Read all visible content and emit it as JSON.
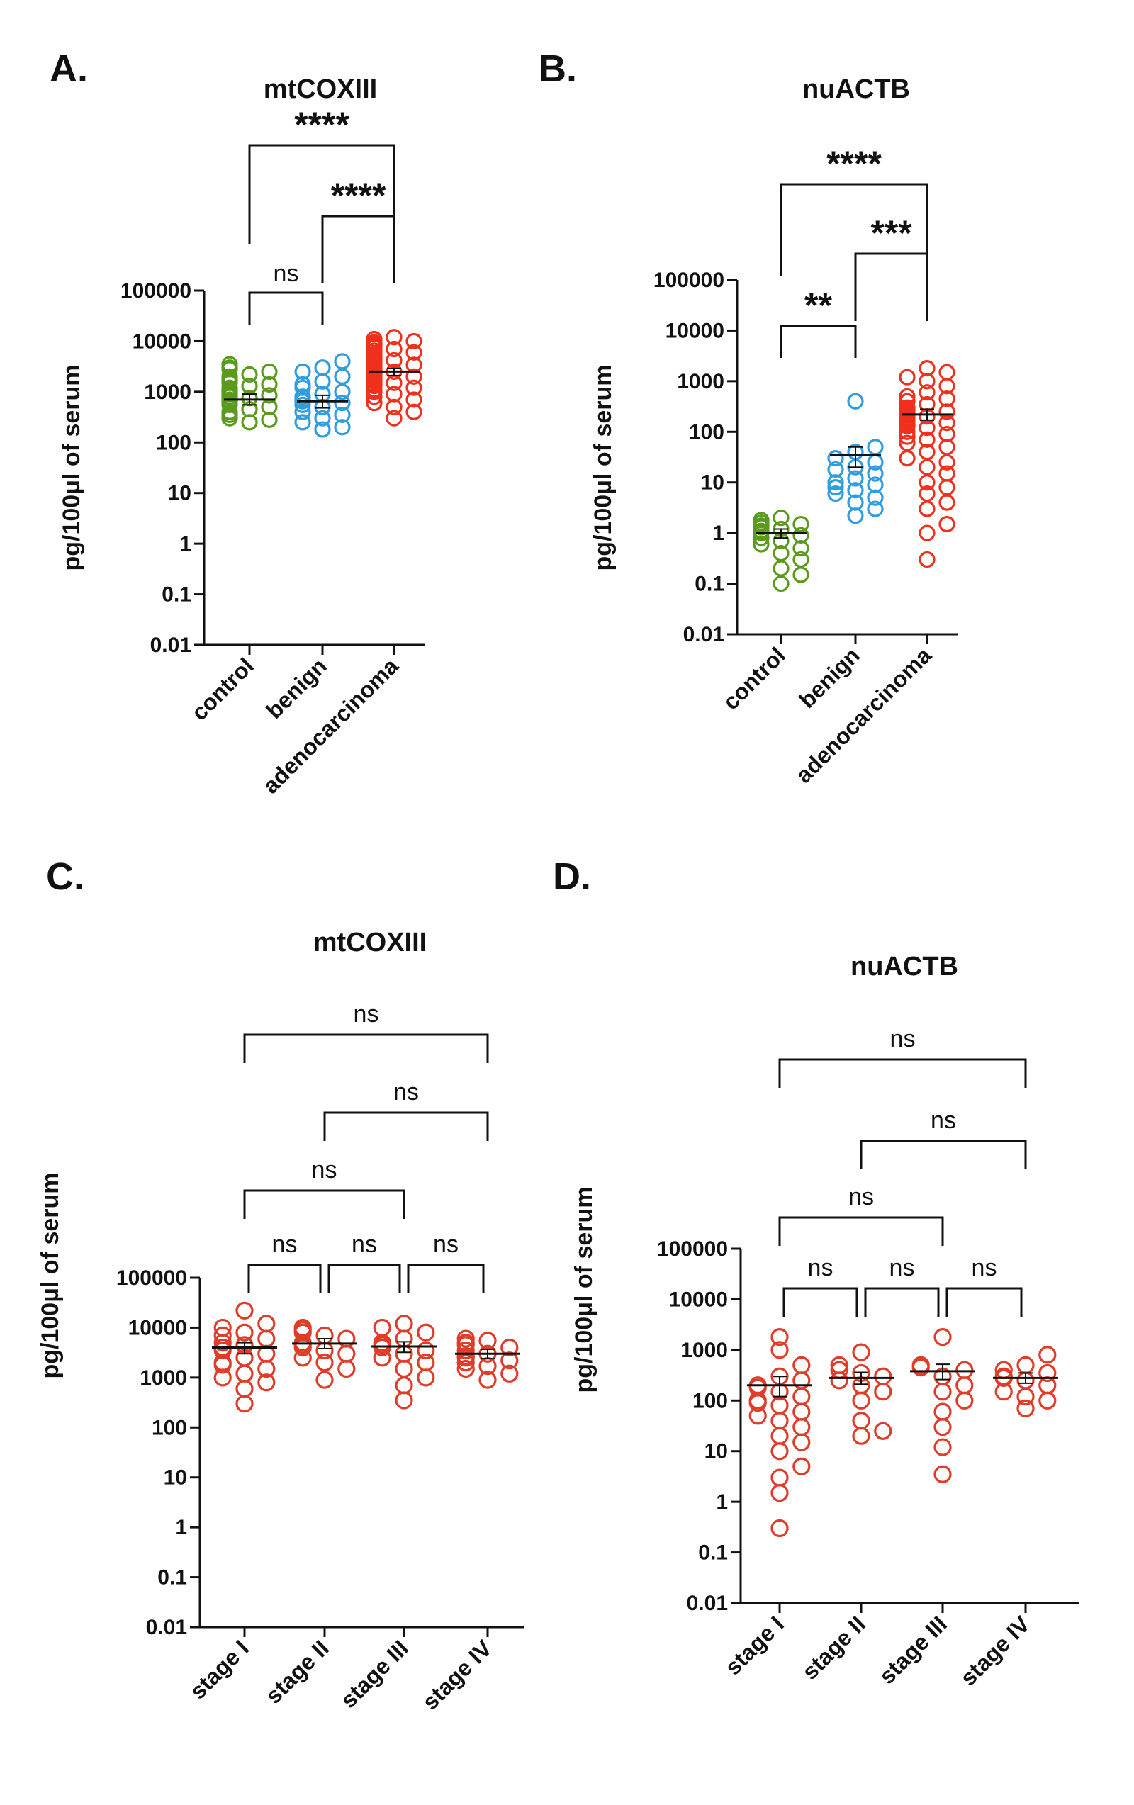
{
  "panels": [
    {
      "letter": "A."
    },
    {
      "letter": "B."
    },
    {
      "letter": "C."
    },
    {
      "letter": "D."
    }
  ],
  "chart_data": [
    {
      "type": "scatter",
      "title": "mtCOXIII",
      "ylabel": "pg/100μl of serum",
      "xlabel": "",
      "yscale": "log",
      "ylim": [
        0.01,
        100000
      ],
      "yticks": [
        "100000",
        "10000",
        "1000",
        "100",
        "10",
        "1",
        "0.1",
        "0.01"
      ],
      "categories": [
        "control",
        "benign",
        "adenocarcinoma"
      ],
      "colors": [
        "#5a9a1c",
        "#2f9de0",
        "#f0301c"
      ],
      "series": [
        {
          "name": "control",
          "mean": 700,
          "sem_low": 550,
          "sem_high": 900,
          "values": [
            3500,
            3000,
            2800,
            2500,
            2200,
            2000,
            1800,
            1600,
            1500,
            1400,
            1300,
            1200,
            1100,
            1000,
            950,
            900,
            850,
            800,
            750,
            700,
            650,
            600,
            550,
            500,
            450,
            400,
            350,
            300,
            280,
            250
          ]
        },
        {
          "name": "benign",
          "mean": 650,
          "sem_low": 480,
          "sem_high": 850,
          "values": [
            4000,
            3000,
            2500,
            2000,
            1600,
            1400,
            1200,
            1000,
            900,
            800,
            700,
            650,
            600,
            550,
            500,
            400,
            350,
            300,
            250,
            200,
            180
          ]
        },
        {
          "name": "adenocarcinoma",
          "mean": 2500,
          "sem_low": 2100,
          "sem_high": 2900,
          "values": [
            12000,
            11000,
            10000,
            9500,
            9000,
            8500,
            8000,
            7500,
            7000,
            6500,
            6000,
            5500,
            5000,
            4800,
            4600,
            4400,
            4200,
            4000,
            3800,
            3600,
            3400,
            3200,
            3000,
            2900,
            2800,
            2700,
            2600,
            2500,
            2400,
            2300,
            2200,
            2100,
            2000,
            1900,
            1800,
            1700,
            1600,
            1500,
            1400,
            1300,
            1200,
            1100,
            1000,
            900,
            800,
            700,
            600,
            500,
            400,
            300
          ]
        }
      ],
      "comparisons": [
        {
          "from": 0,
          "to": 2,
          "label": "****"
        },
        {
          "from": 1,
          "to": 2,
          "label": "****"
        },
        {
          "from": 0,
          "to": 1,
          "label": "ns"
        }
      ]
    },
    {
      "type": "scatter",
      "title": "nuACTB",
      "ylabel": "pg/100μl of serum",
      "xlabel": "",
      "yscale": "log",
      "ylim": [
        0.01,
        100000
      ],
      "yticks": [
        "100000",
        "10000",
        "1000",
        "100",
        "10",
        "1",
        "0.1",
        "0.01"
      ],
      "categories": [
        "control",
        "benign",
        "adenocarcinoma"
      ],
      "colors": [
        "#5a9a1c",
        "#2f9de0",
        "#f0301c"
      ],
      "series": [
        {
          "name": "control",
          "mean": 1.0,
          "sem_low": 0.8,
          "sem_high": 1.2,
          "values": [
            2.0,
            1.8,
            1.6,
            1.5,
            1.4,
            1.3,
            1.2,
            1.1,
            1.0,
            0.9,
            0.8,
            0.7,
            0.6,
            0.5,
            0.4,
            0.3,
            0.2,
            0.15,
            0.1
          ]
        },
        {
          "name": "benign",
          "mean": 35,
          "sem_low": 20,
          "sem_high": 50,
          "values": [
            400,
            50,
            40,
            30,
            25,
            20,
            18,
            15,
            12,
            10,
            9,
            8,
            7,
            6,
            5,
            4,
            3,
            2.2
          ]
        },
        {
          "name": "adenocarcinoma",
          "mean": 220,
          "sem_low": 170,
          "sem_high": 280,
          "values": [
            1800,
            1500,
            1200,
            1000,
            800,
            600,
            500,
            450,
            400,
            350,
            300,
            280,
            260,
            250,
            240,
            230,
            220,
            210,
            200,
            190,
            180,
            170,
            160,
            150,
            140,
            130,
            120,
            100,
            90,
            80,
            70,
            60,
            50,
            40,
            30,
            25,
            20,
            15,
            10,
            8,
            6,
            4,
            3,
            1.5,
            1.0,
            0.3
          ]
        }
      ],
      "comparisons": [
        {
          "from": 0,
          "to": 2,
          "label": "****"
        },
        {
          "from": 1,
          "to": 2,
          "label": "***"
        },
        {
          "from": 0,
          "to": 1,
          "label": "**"
        }
      ]
    },
    {
      "type": "scatter",
      "title": "mtCOXIII",
      "ylabel": "pg/100μl of serum",
      "xlabel": "",
      "yscale": "log",
      "ylim": [
        0.01,
        100000
      ],
      "yticks": [
        "100000",
        "10000",
        "1000",
        "100",
        "10",
        "1",
        "0.1",
        "0.01"
      ],
      "categories": [
        "stage I",
        "stage II",
        "stage III",
        "stage IV"
      ],
      "colors": [
        "#e03c28",
        "#e03c28",
        "#e03c28",
        "#e03c28"
      ],
      "series": [
        {
          "name": "stage I",
          "mean": 4000,
          "sem_low": 3000,
          "sem_high": 5000,
          "values": [
            22000,
            12000,
            10000,
            8000,
            7000,
            6000,
            5000,
            4500,
            4000,
            3500,
            3000,
            2500,
            2000,
            1800,
            1500,
            1200,
            1000,
            800,
            600,
            300
          ]
        },
        {
          "name": "stage II",
          "mean": 4800,
          "sem_low": 3800,
          "sem_high": 6000,
          "values": [
            10000,
            9000,
            8000,
            7000,
            6000,
            5000,
            4500,
            4000,
            3500,
            3000,
            2500,
            2000,
            1500,
            900
          ]
        },
        {
          "name": "stage III",
          "mean": 4200,
          "sem_low": 3200,
          "sem_high": 5200,
          "values": [
            12000,
            10000,
            8000,
            6000,
            5000,
            4500,
            4000,
            3500,
            3000,
            2500,
            2000,
            1500,
            1000,
            700,
            350
          ]
        },
        {
          "name": "stage IV",
          "mean": 3000,
          "sem_low": 2400,
          "sem_high": 3700,
          "values": [
            6000,
            5500,
            5000,
            4500,
            4000,
            3500,
            3000,
            2700,
            2500,
            2200,
            2000,
            1700,
            1500,
            1200,
            900
          ]
        }
      ],
      "comparisons": [
        {
          "from": 0,
          "to": 3,
          "label": "ns"
        },
        {
          "from": 1,
          "to": 3,
          "label": "ns"
        },
        {
          "from": 0,
          "to": 2,
          "label": "ns"
        },
        {
          "from": 0,
          "to": 1,
          "label": "ns"
        },
        {
          "from": 1,
          "to": 2,
          "label": "ns"
        },
        {
          "from": 2,
          "to": 3,
          "label": "ns"
        }
      ]
    },
    {
      "type": "scatter",
      "title": "nuACTB",
      "ylabel": "pg/100μl of serum",
      "xlabel": "",
      "yscale": "log",
      "ylim": [
        0.01,
        100000
      ],
      "yticks": [
        "100000",
        "10000",
        "1000",
        "100",
        "10",
        "1",
        "0.1",
        "0.01"
      ],
      "categories": [
        "stage I",
        "stage II",
        "stage III",
        "stage IV"
      ],
      "colors": [
        "#e03c28",
        "#e03c28",
        "#e03c28",
        "#e03c28"
      ],
      "series": [
        {
          "name": "stage I",
          "mean": 200,
          "sem_low": 120,
          "sem_high": 300,
          "values": [
            1800,
            1000,
            500,
            300,
            250,
            200,
            180,
            150,
            120,
            100,
            90,
            80,
            60,
            50,
            40,
            30,
            20,
            15,
            10,
            5,
            3,
            1.5,
            0.3
          ]
        },
        {
          "name": "stage II",
          "mean": 280,
          "sem_low": 210,
          "sem_high": 360,
          "values": [
            900,
            500,
            400,
            350,
            300,
            250,
            200,
            150,
            100,
            40,
            25,
            20
          ]
        },
        {
          "name": "stage III",
          "mean": 380,
          "sem_low": 260,
          "sem_high": 520,
          "values": [
            1800,
            500,
            450,
            400,
            300,
            200,
            150,
            100,
            60,
            30,
            12,
            3.5
          ]
        },
        {
          "name": "stage IV",
          "mean": 280,
          "sem_low": 220,
          "sem_high": 350,
          "values": [
            800,
            500,
            400,
            350,
            300,
            280,
            250,
            200,
            150,
            120,
            100,
            70
          ]
        }
      ],
      "comparisons": [
        {
          "from": 0,
          "to": 3,
          "label": "ns"
        },
        {
          "from": 1,
          "to": 3,
          "label": "ns"
        },
        {
          "from": 0,
          "to": 2,
          "label": "ns"
        },
        {
          "from": 0,
          "to": 1,
          "label": "ns"
        },
        {
          "from": 1,
          "to": 2,
          "label": "ns"
        },
        {
          "from": 2,
          "to": 3,
          "label": "ns"
        }
      ]
    }
  ]
}
